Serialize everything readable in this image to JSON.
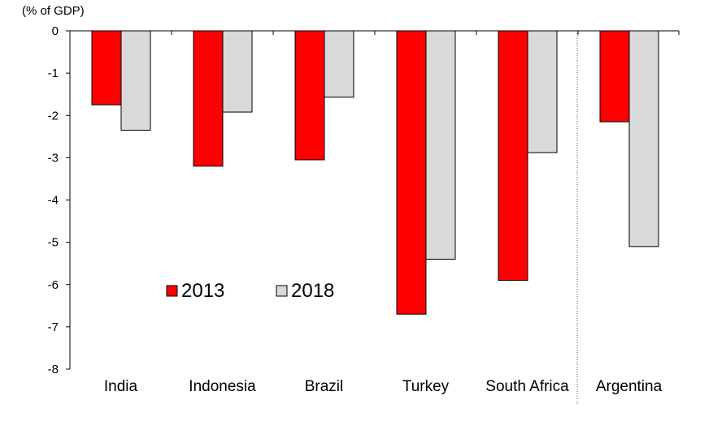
{
  "chart_data": {
    "type": "bar",
    "title": "",
    "unit_label": "(% of GDP)",
    "xlabel": "",
    "ylabel": "",
    "ylim": [
      -8,
      0
    ],
    "y_ticks": [
      0,
      -1,
      -2,
      -3,
      -4,
      -5,
      -6,
      -7,
      -8
    ],
    "grid": false,
    "legend_position": "center-left",
    "categories": [
      "India",
      "Indonesia",
      "Brazil",
      "Turkey",
      "South Africa",
      "Argentina"
    ],
    "separator_before_category": "Argentina",
    "series": [
      {
        "name": "2013",
        "color": "#ff0000",
        "values": [
          -1.75,
          -3.2,
          -3.05,
          -6.7,
          -5.9,
          -2.15
        ]
      },
      {
        "name": "2018",
        "color": "#d9d9d9",
        "values": [
          -2.35,
          -1.92,
          -1.57,
          -5.4,
          -2.88,
          -5.1
        ]
      }
    ]
  }
}
